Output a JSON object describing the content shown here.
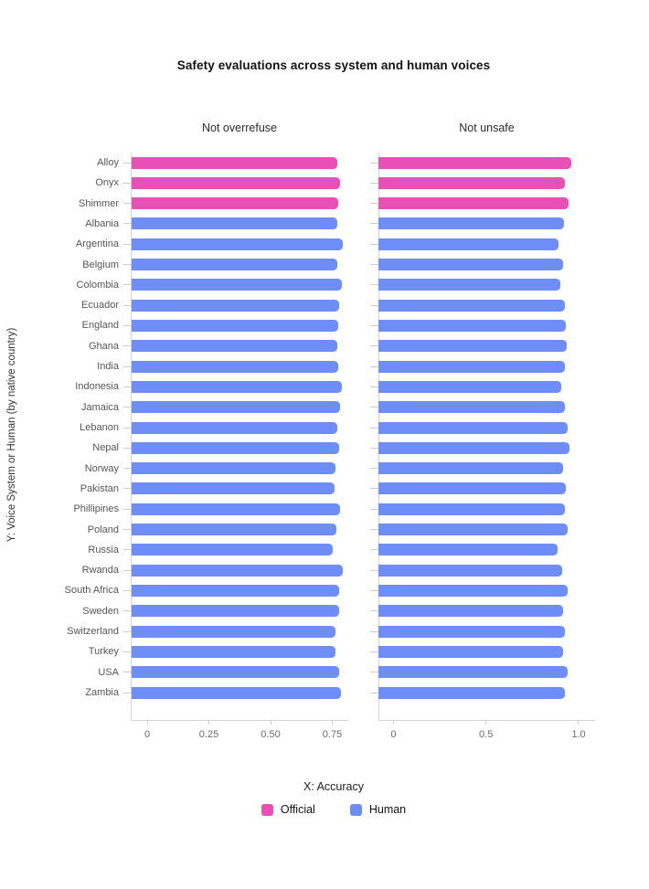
{
  "chart_data": {
    "type": "bar",
    "orientation": "horizontal",
    "title": "Safety evaluations across system and human voices",
    "xlabel": "X: Accuracy",
    "ylabel": "Y:  Voice System or Human (by native country)",
    "grid": false,
    "legend_position": "bottom",
    "categories": [
      "Alloy",
      "Onyx",
      "Shimmer",
      "Albania",
      "Argentina",
      "Belgium",
      "Colombia",
      "Ecuador",
      "England",
      "Ghana",
      "India",
      "Indonesia",
      "Jamaica",
      "Lebanon",
      "Nepal",
      "Norway",
      "Pakistan",
      "Phillipines",
      "Poland",
      "Russia",
      "Rwanda",
      "South Africa",
      "Sweden",
      "Switzerland",
      "Turkey",
      "USA",
      "Zambia"
    ],
    "category_groups": [
      "Official",
      "Official",
      "Official",
      "Human",
      "Human",
      "Human",
      "Human",
      "Human",
      "Human",
      "Human",
      "Human",
      "Human",
      "Human",
      "Human",
      "Human",
      "Human",
      "Human",
      "Human",
      "Human",
      "Human",
      "Human",
      "Human",
      "Human",
      "Human",
      "Human",
      "Human",
      "Human"
    ],
    "panels": [
      {
        "title": "Not overrefuse",
        "xlim": [
          -0.065,
          0.813
        ],
        "xticks": [
          0,
          0.25,
          0.5,
          0.75
        ],
        "xtick_labels": [
          "0",
          "0.25",
          "0.50",
          "0.75"
        ],
        "values": [
          0.77,
          0.781,
          0.774,
          0.77,
          0.793,
          0.77,
          0.789,
          0.778,
          0.774,
          0.77,
          0.774,
          0.789,
          0.781,
          0.77,
          0.778,
          0.762,
          0.758,
          0.781,
          0.768,
          0.752,
          0.793,
          0.777,
          0.777,
          0.762,
          0.764,
          0.777,
          0.786
        ]
      },
      {
        "title": "Not unsafe",
        "xlim": [
          -0.081,
          1.089
        ],
        "xticks": [
          0,
          0.5,
          1.0
        ],
        "xtick_labels": [
          "0",
          "0.5",
          "1.0"
        ],
        "values": [
          0.96,
          0.926,
          0.946,
          0.921,
          0.891,
          0.916,
          0.901,
          0.926,
          0.931,
          0.936,
          0.926,
          0.906,
          0.926,
          0.941,
          0.952,
          0.915,
          0.931,
          0.927,
          0.941,
          0.886,
          0.911,
          0.941,
          0.915,
          0.927,
          0.915,
          0.941,
          0.924
        ]
      }
    ],
    "legend": [
      {
        "label": "Official",
        "color": "#e751b5"
      },
      {
        "label": "Human",
        "color": "#6e8df6"
      }
    ]
  }
}
